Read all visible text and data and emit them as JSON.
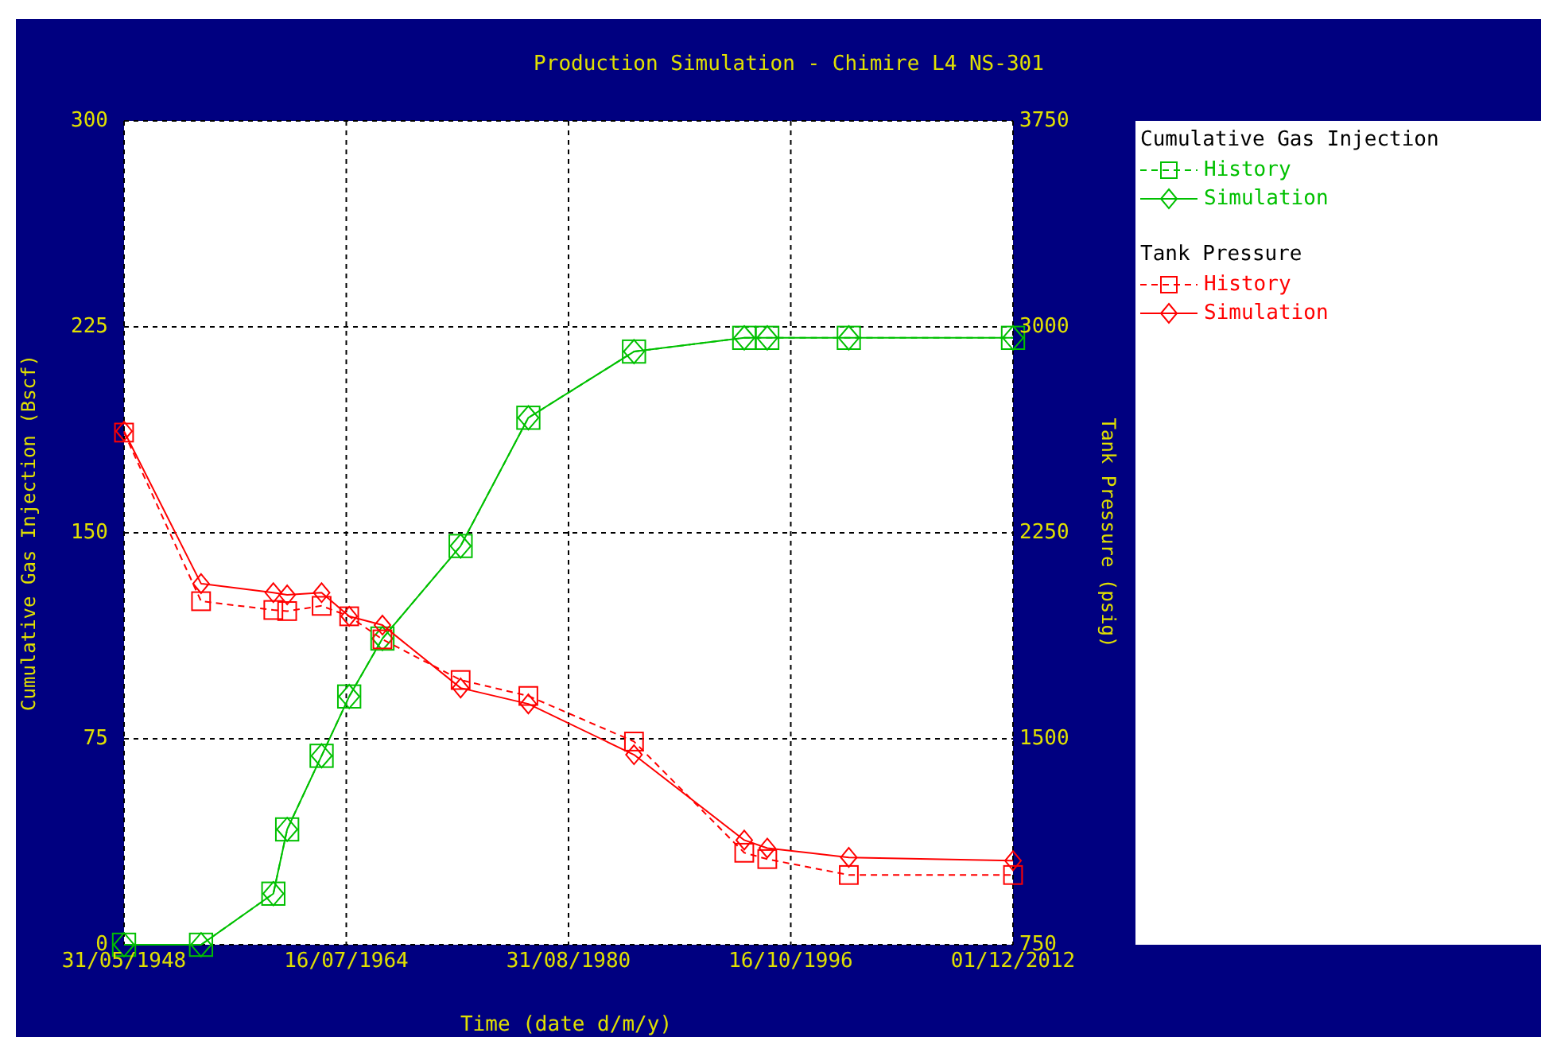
{
  "chart_data": {
    "type": "line",
    "title": "Production Simulation - Chimire L4 NS-301",
    "xlabel": "Time (date d/m/y)",
    "ylabel": "Cumulative Gas Injection (Bscf)",
    "y2label": "Tank Pressure (psig)",
    "x": [
      "1948-05-31",
      "1954-01",
      "1959-04",
      "1960-04",
      "1962-10",
      "1964-10",
      "1967-03",
      "1972-11",
      "1977-10",
      "1985-06",
      "1993-06",
      "1995-02",
      "2001-01",
      "2012-12-01"
    ],
    "series": [
      {
        "name": "History",
        "color": "#00c000",
        "marker": "square",
        "line_style": "dashed",
        "values": [
          0,
          0,
          18.6,
          42,
          68.8,
          90.4,
          111.5,
          145.2,
          191.9,
          216,
          221,
          221,
          221,
          221
        ]
      },
      {
        "name": "Simulation",
        "color": "#00c000",
        "marker": "diamond",
        "line_style": "solid",
        "values": [
          0,
          0,
          18.6,
          42,
          68.8,
          90.4,
          111.5,
          145.2,
          191.9,
          216,
          221,
          221,
          221,
          221
        ]
      },
      {
        "name": "History",
        "color": "#ff0000",
        "marker": "square",
        "line_style": "dashed",
        "axis": "y2",
        "values": [
          2615,
          2001,
          1969,
          1965,
          1984,
          1946,
          1862,
          1714,
          1656,
          1490,
          1085,
          1062,
          1004,
          1004
        ]
      },
      {
        "name": "Simulation",
        "color": "#ff0000",
        "marker": "diamond",
        "line_style": "solid",
        "axis": "y2",
        "values": [
          2620,
          2065,
          2032,
          2024,
          2032,
          1946,
          1914,
          1685,
          1627,
          1442,
          1131,
          1102,
          1068,
          1056
        ]
      }
    ],
    "annotations": [
      "Cumulative Gas Injection",
      "Tank Pressure"
    ],
    "xlim": [
      "1948-05-31",
      "2012-12-01"
    ],
    "xticks": [
      {
        "value": "1948-05-31",
        "label": "31/05/1948"
      },
      {
        "value": "1964-07-16",
        "label": "16/07/1964"
      },
      {
        "value": "1980-08-31",
        "label": "31/08/1980"
      },
      {
        "value": "1996-10-16",
        "label": "16/10/1996"
      },
      {
        "value": "2012-12-01",
        "label": "01/12/2012"
      }
    ],
    "ylim": [
      0,
      300
    ],
    "yticks": [
      0,
      75,
      150,
      225,
      300
    ],
    "y2lim": [
      750,
      3750
    ],
    "y2ticks": [
      750,
      1500,
      2250,
      3000,
      3750
    ],
    "grid": true,
    "legend": "right"
  }
}
